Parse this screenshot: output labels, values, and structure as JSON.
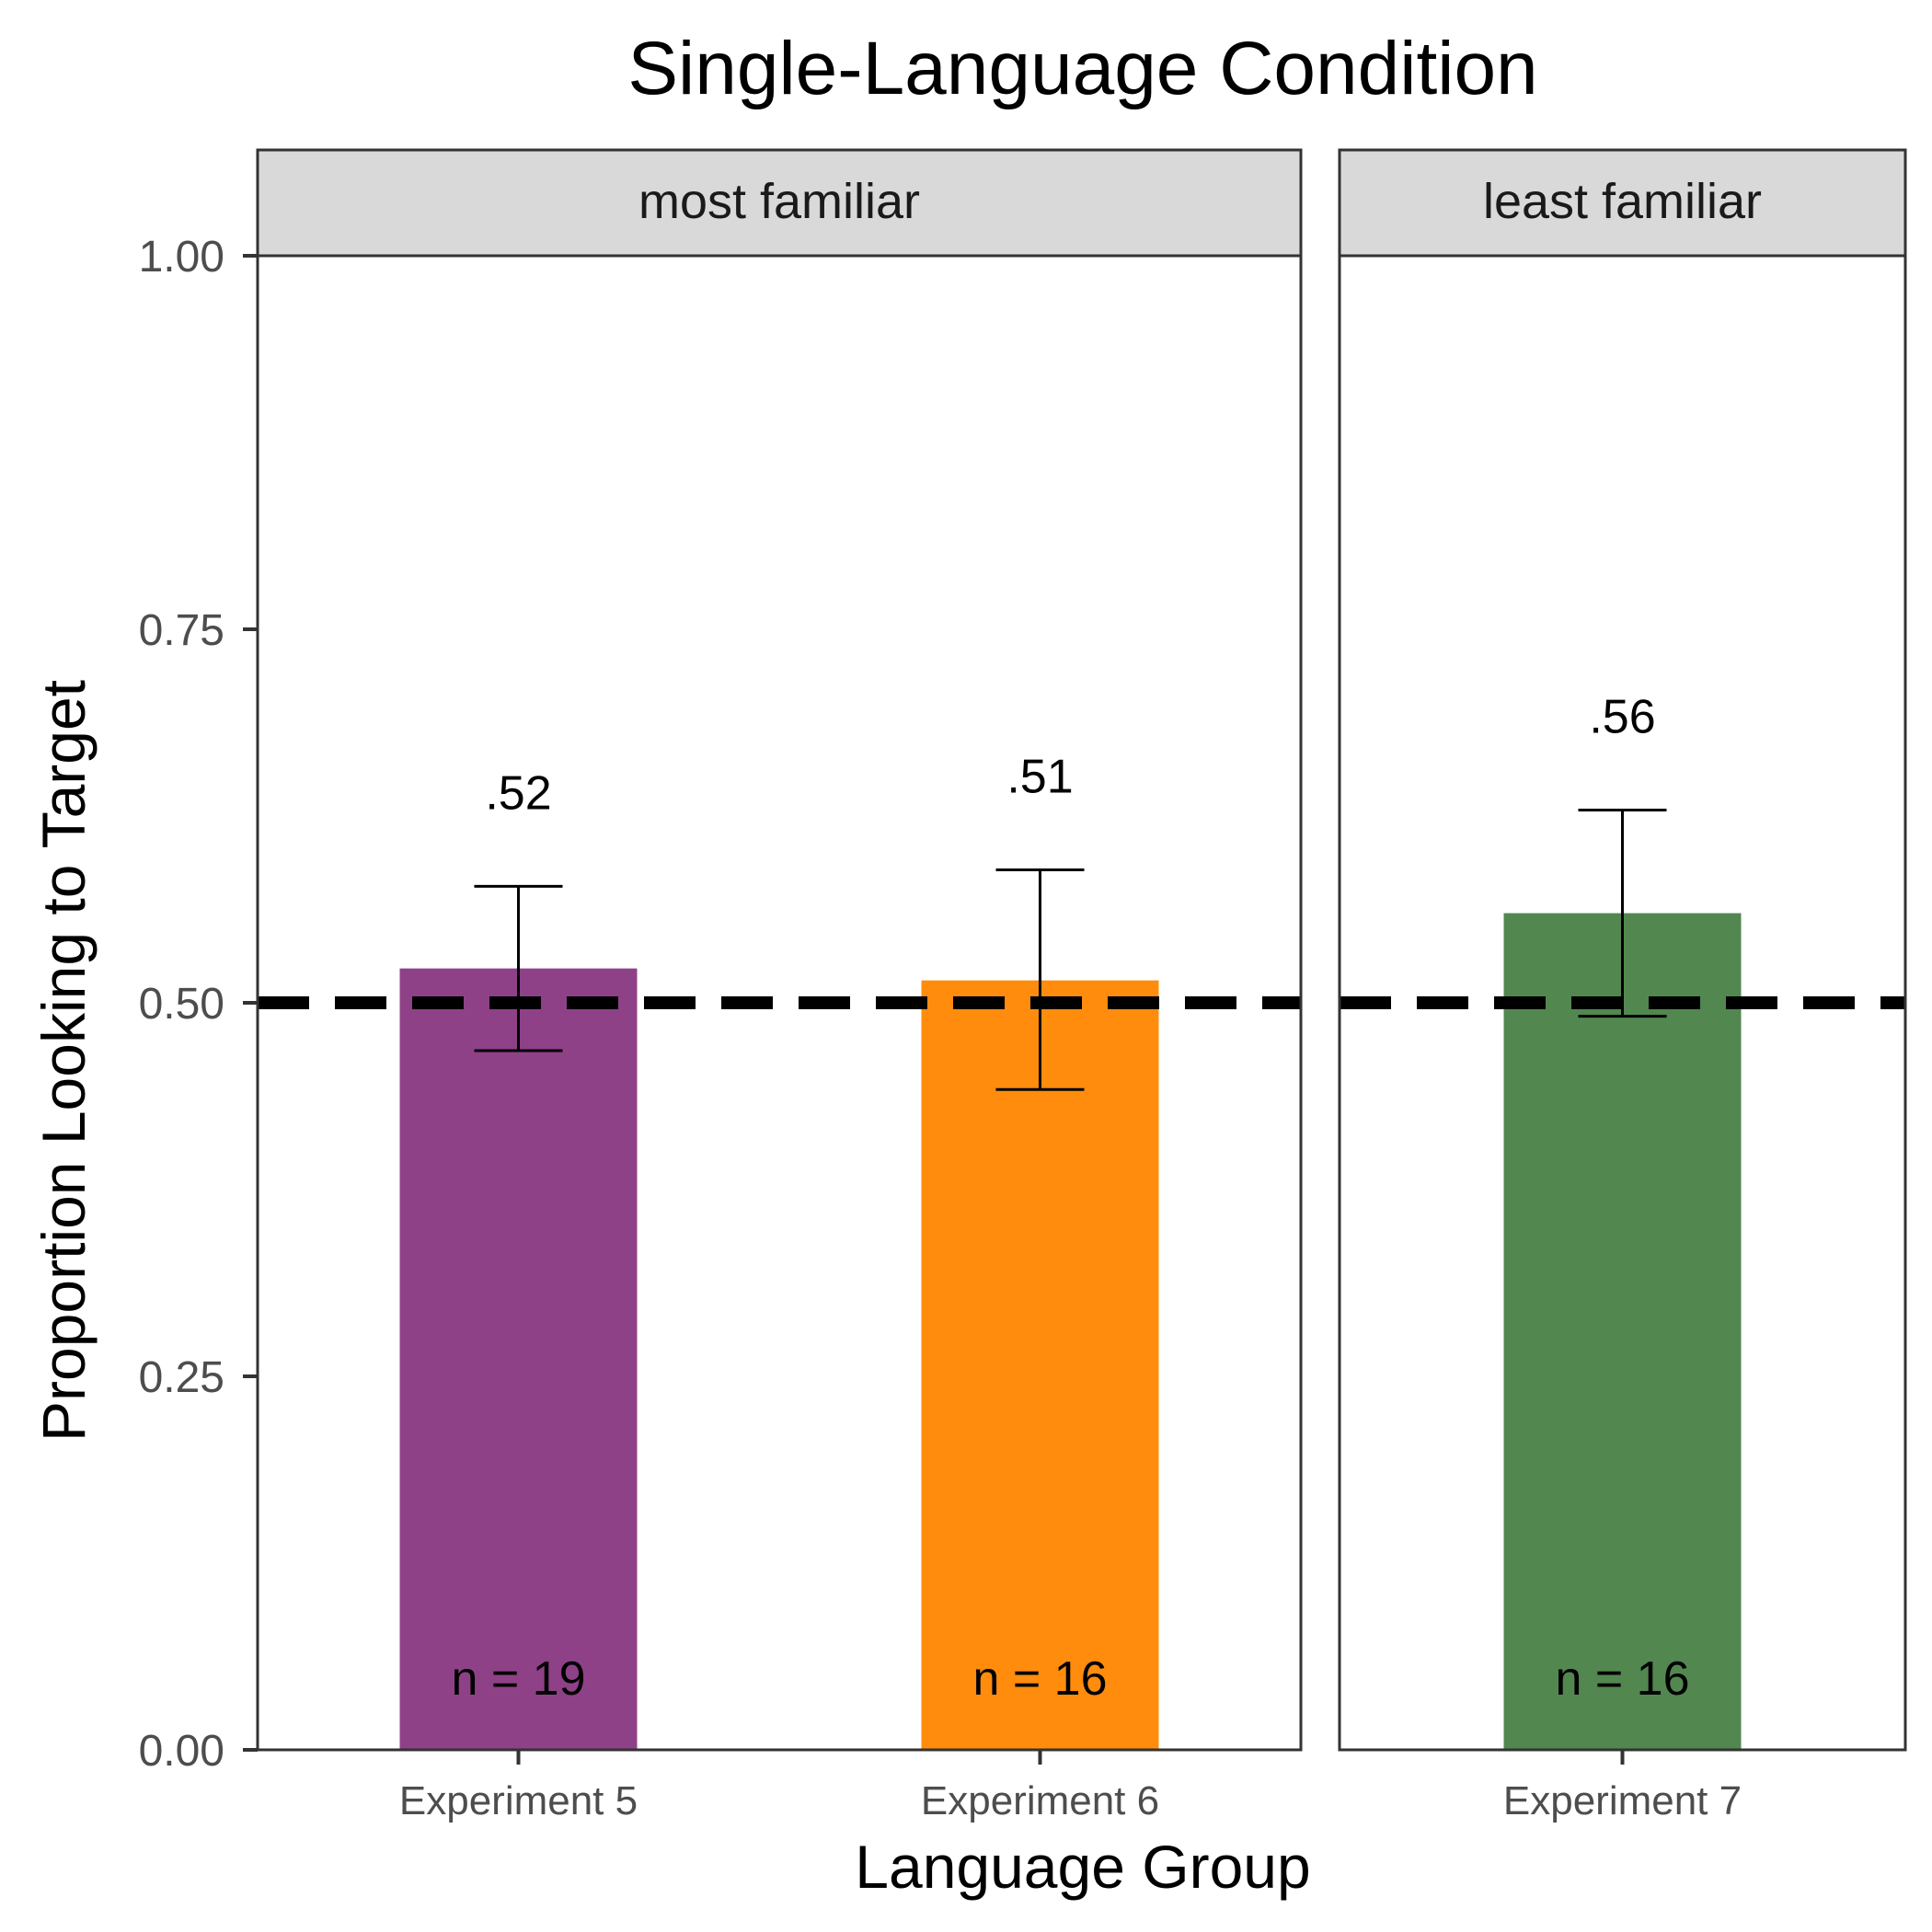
{
  "chart_data": {
    "type": "bar",
    "title": "Single-Language Condition",
    "xlabel": "Language Group",
    "ylabel": "Proportion Looking to Target",
    "ylim": [
      0,
      1.07
    ],
    "yticks": [
      "0.00",
      "0.25",
      "0.50",
      "0.75",
      "1.00"
    ],
    "ytick_values": [
      0,
      0.25,
      0.5,
      0.75,
      1.0
    ],
    "reference_line": 0.5,
    "facets": [
      {
        "label": "most familiar",
        "bars": [
          {
            "category": "Experiment 5",
            "value": 0.523,
            "error_low": 0.468,
            "error_high": 0.578,
            "value_label": ".52",
            "n_label": "n = 19",
            "color": "#8F4188"
          },
          {
            "category": "Experiment 6",
            "value": 0.515,
            "error_low": 0.442,
            "error_high": 0.589,
            "value_label": ".51",
            "n_label": "n = 16",
            "color": "#FF8C0D"
          }
        ]
      },
      {
        "label": "least familiar",
        "bars": [
          {
            "category": "Experiment 7",
            "value": 0.56,
            "error_low": 0.491,
            "error_high": 0.629,
            "value_label": ".56",
            "n_label": "n = 16",
            "color": "#528750"
          }
        ]
      }
    ]
  }
}
